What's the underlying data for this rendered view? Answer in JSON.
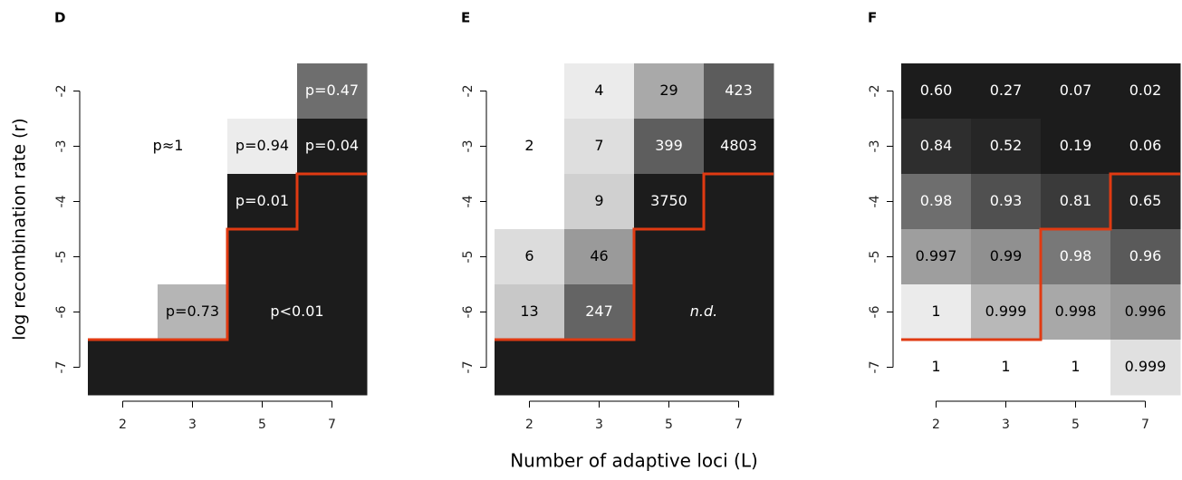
{
  "chart_data": [
    {
      "type": "heatmap",
      "panel_label": "D",
      "ylabel": "log recombination rate (r)",
      "categories": [
        "2",
        "3",
        "5",
        "7"
      ],
      "rows": [
        "-2",
        "-3",
        "-4",
        "-5",
        "-6",
        "-7"
      ],
      "colors": [
        [
          "#ffffff",
          "#ffffff",
          "#ffffff",
          "#6e6e6e"
        ],
        [
          "#ffffff",
          "#ffffff",
          "#ececec",
          "#1c1c1c"
        ],
        [
          "#ffffff",
          "#ffffff",
          "#1c1c1c",
          "#1c1c1c"
        ],
        [
          "#ffffff",
          "#ffffff",
          "#1c1c1c",
          "#1c1c1c"
        ],
        [
          "#ffffff",
          "#b5b5b5",
          "#1c1c1c",
          "#1c1c1c"
        ],
        [
          "#1c1c1c",
          "#1c1c1c",
          "#1c1c1c",
          "#1c1c1c"
        ]
      ],
      "annotations": [
        "p≈1",
        "p=0.47",
        "p=0.94",
        "p=0.04",
        "p=0.01",
        "p=0.73",
        "p<0.01"
      ],
      "boundary_color": "#e03a12"
    },
    {
      "type": "heatmap",
      "panel_label": "E",
      "xlabel": "Number of adaptive loci (L)",
      "categories": [
        "2",
        "3",
        "5",
        "7"
      ],
      "rows": [
        "-2",
        "-3",
        "-4",
        "-5",
        "-6",
        "-7"
      ],
      "colors": [
        [
          "#ffffff",
          "#ebebeb",
          "#a9a9a9",
          "#5c5c5c"
        ],
        [
          "#ffffff",
          "#dedede",
          "#5e5e5e",
          "#1c1c1c"
        ],
        [
          "#ffffff",
          "#d0d0d0",
          "#1c1c1c",
          "#1c1c1c"
        ],
        [
          "#dcdcdc",
          "#9a9a9a",
          "#1c1c1c",
          "#1c1c1c"
        ],
        [
          "#c8c8c8",
          "#646464",
          "#1c1c1c",
          "#1c1c1c"
        ],
        [
          "#1c1c1c",
          "#1c1c1c",
          "#1c1c1c",
          "#1c1c1c"
        ]
      ],
      "values": [
        [
          null,
          4,
          29,
          423
        ],
        [
          2,
          7,
          399,
          4803
        ],
        [
          null,
          9,
          3750,
          null
        ],
        [
          6,
          46,
          null,
          null
        ],
        [
          13,
          247,
          null,
          null
        ],
        [
          null,
          null,
          null,
          null
        ]
      ],
      "annotations": [
        "n.d."
      ],
      "boundary_color": "#e03a12"
    },
    {
      "type": "heatmap",
      "panel_label": "F",
      "categories": [
        "2",
        "3",
        "5",
        "7"
      ],
      "rows": [
        "-2",
        "-3",
        "-4",
        "-5",
        "-6",
        "-7"
      ],
      "colors": [
        [
          "#1c1c1c",
          "#1c1c1c",
          "#1c1c1c",
          "#1c1c1c"
        ],
        [
          "#2e2e2e",
          "#262626",
          "#1c1c1c",
          "#1c1c1c"
        ],
        [
          "#6e6e6e",
          "#505050",
          "#3a3a3a",
          "#262626"
        ],
        [
          "#9e9e9e",
          "#909090",
          "#787878",
          "#5a5a5a"
        ],
        [
          "#ebebeb",
          "#b8b8b8",
          "#a8a8a8",
          "#9a9a9a"
        ],
        [
          "#ffffff",
          "#ffffff",
          "#ffffff",
          "#e0e0e0"
        ]
      ],
      "values": [
        [
          0.6,
          0.27,
          0.07,
          0.02
        ],
        [
          0.84,
          0.52,
          0.19,
          0.06
        ],
        [
          0.98,
          0.93,
          0.81,
          0.65
        ],
        [
          0.997,
          0.99,
          0.98,
          0.96
        ],
        [
          1,
          0.999,
          0.998,
          0.996
        ],
        [
          1,
          1,
          1,
          0.999
        ]
      ],
      "value_labels": [
        [
          "0.60",
          "0.27",
          "0.07",
          "0.02"
        ],
        [
          "0.84",
          "0.52",
          "0.19",
          "0.06"
        ],
        [
          "0.98",
          "0.93",
          "0.81",
          "0.65"
        ],
        [
          "0.997",
          "0.99",
          "0.98",
          "0.96"
        ],
        [
          "1",
          "0.999",
          "0.998",
          "0.996"
        ],
        [
          "1",
          "1",
          "1",
          "0.999"
        ]
      ],
      "boundary_color": "#e03a12"
    }
  ]
}
